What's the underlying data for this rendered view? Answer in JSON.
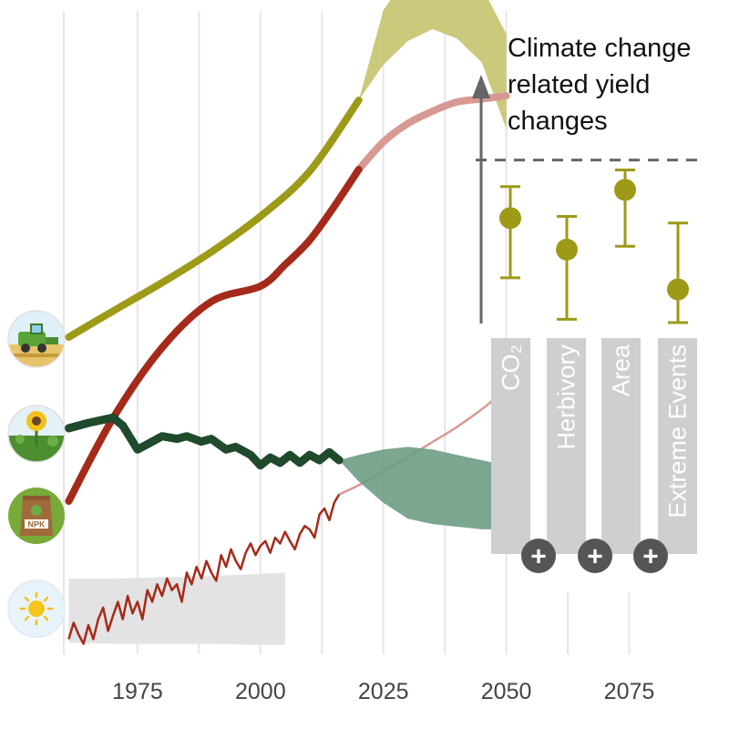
{
  "colors": {
    "yield": "#9c9a17",
    "yield_band": "#c5c36e",
    "fertilizer": "#a52a1a",
    "fertilizer_proj": "#d79a92",
    "sunflower": "#1f4a2c",
    "sunflower_band": "#6d9c84",
    "temperature": "#a52a1a",
    "temperature_band": "#e3e3e3",
    "grid": "#e6e6e6",
    "bar": "#cfcfcf",
    "plus_circle": "#555555",
    "axis_arrow": "#666666"
  },
  "icons": [
    "harvester-icon",
    "sunflower-icon",
    "npk-fertilizer-bag-icon",
    "sun-icon"
  ],
  "chart_data": [
    {
      "type": "line",
      "x_ticks": [
        "1975",
        "2000",
        "2025",
        "2050",
        "2075"
      ],
      "x_tick_years": [
        1975,
        2000,
        2025,
        2050,
        2075
      ],
      "xlim": [
        1960,
        2094
      ],
      "gridline_years": [
        1960,
        1975,
        1987.5,
        2000,
        2012.5,
        2025,
        2037.5,
        2050,
        2062.5,
        2075
      ],
      "series": [
        {
          "key": "yield",
          "x": [
            1961,
            1970,
            1980,
            1990,
            2000,
            2010,
            2020
          ],
          "y": [
            0.72,
            0.83,
            0.95,
            1.08,
            1.23,
            1.42,
            1.72
          ],
          "band": {
            "x": [
              2020,
              2025,
              2030,
              2035,
              2040,
              2045,
              2050
            ],
            "low": [
              1.72,
              1.87,
              1.97,
              2.02,
              1.98,
              1.88,
              1.6
            ],
            "high": [
              1.72,
              2.1,
              2.25,
              2.28,
              2.28,
              2.2,
              2.0
            ]
          }
        },
        {
          "key": "fertilizer",
          "x": [
            1961,
            1970,
            1980,
            1990,
            2000,
            2005,
            2010,
            2015,
            2020
          ],
          "y": [
            0.3,
            0.57,
            0.8,
            0.95,
            1.0,
            1.07,
            1.15,
            1.26,
            1.38
          ],
          "projection": {
            "x": [
              2020,
              2025,
              2030,
              2035,
              2040,
              2045,
              2050
            ],
            "y": [
              1.38,
              1.47,
              1.53,
              1.57,
              1.6,
              1.61,
              1.62
            ]
          }
        },
        {
          "key": "sunflower",
          "x": [
            1961,
            1965,
            1970,
            1972,
            1975,
            1978,
            1980,
            1983,
            1985,
            1988,
            1990,
            1993,
            1995,
            1998,
            2000,
            2002,
            2004,
            2006,
            2008,
            2010,
            2012,
            2014,
            2016
          ],
          "y": [
            0.58,
            0.6,
            0.62,
            0.59,
            0.5,
            0.53,
            0.55,
            0.54,
            0.55,
            0.53,
            0.54,
            0.5,
            0.51,
            0.48,
            0.44,
            0.47,
            0.45,
            0.48,
            0.45,
            0.48,
            0.46,
            0.49,
            0.46
          ],
          "band": {
            "x": [
              2016,
              2020,
              2025,
              2030,
              2035,
              2040,
              2045,
              2050
            ],
            "low": [
              0.46,
              0.38,
              0.3,
              0.24,
              0.22,
              0.21,
              0.2,
              0.2
            ],
            "high": [
              0.46,
              0.48,
              0.5,
              0.51,
              0.5,
              0.48,
              0.46,
              0.44
            ]
          }
        },
        {
          "key": "temperature",
          "x": [
            1961,
            1962,
            1963,
            1964,
            1965,
            1966,
            1967,
            1968,
            1969,
            1970,
            1971,
            1972,
            1973,
            1974,
            1975,
            1976,
            1977,
            1978,
            1979,
            1980,
            1981,
            1982,
            1983,
            1984,
            1985,
            1986,
            1987,
            1988,
            1989,
            1990,
            1991,
            1992,
            1993,
            1994,
            1995,
            1996,
            1997,
            1998,
            1999,
            2000,
            2001,
            2002,
            2003,
            2004,
            2005,
            2006,
            2007,
            2008,
            2009,
            2010,
            2011,
            2012,
            2013,
            2014,
            2015,
            2016
          ],
          "y": [
            -0.62,
            -0.48,
            -0.58,
            -0.66,
            -0.5,
            -0.62,
            -0.45,
            -0.35,
            -0.55,
            -0.42,
            -0.3,
            -0.45,
            -0.25,
            -0.4,
            -0.3,
            -0.45,
            -0.2,
            -0.3,
            -0.15,
            -0.25,
            -0.1,
            -0.2,
            -0.15,
            -0.3,
            -0.05,
            -0.15,
            0.0,
            -0.1,
            0.05,
            -0.05,
            -0.12,
            0.1,
            0.0,
            0.15,
            0.05,
            -0.02,
            0.12,
            0.2,
            0.1,
            0.18,
            0.22,
            0.12,
            0.25,
            0.2,
            0.3,
            0.22,
            0.15,
            0.28,
            0.35,
            0.32,
            0.25,
            0.45,
            0.5,
            0.4,
            0.55,
            0.62
          ],
          "projection": {
            "x": [
              2016,
              2020,
              2025,
              2030,
              2035,
              2040,
              2045,
              2050
            ],
            "y": [
              0.62,
              0.7,
              0.82,
              0.94,
              1.07,
              1.2,
              1.35,
              1.52
            ]
          },
          "band": {
            "x": [
              1961,
              1970,
              1980,
              1990,
              2000,
              2005
            ],
            "low": [
              -0.65,
              -0.66,
              -0.66,
              -0.66,
              -0.67,
              -0.67
            ],
            "high": [
              -0.1,
              -0.1,
              -0.09,
              -0.08,
              -0.06,
              -0.05
            ]
          }
        }
      ]
    },
    {
      "type": "scatter",
      "title": [
        "Climate change",
        "related yield",
        "changes"
      ],
      "categories": [
        "CO₂",
        "Herbivory",
        "Area",
        "Extreme Events"
      ],
      "values": [
        0.55,
        -0.4,
        1.4,
        -1.6
      ],
      "error_low": [
        -1.25,
        -2.5,
        -0.3,
        -2.6
      ],
      "error_high": [
        1.5,
        0.6,
        2.0,
        0.4
      ],
      "reference_line": 2.3,
      "ylim": [
        -4.0,
        5.2
      ],
      "operators": [
        "+",
        "+",
        "+"
      ]
    }
  ]
}
